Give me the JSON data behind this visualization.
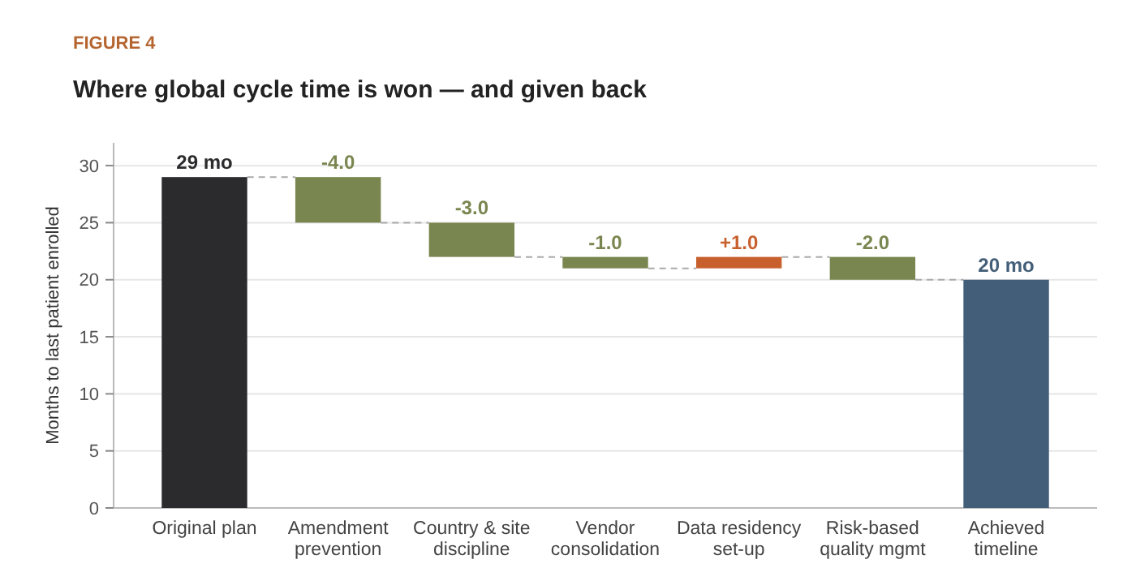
{
  "chart_data": {
    "type": "bar",
    "title": "Where global cycle time is won — and given back",
    "annotations": [
      "FIGURE 4"
    ],
    "ylabel": "Months to last patient enrolled",
    "categories": [
      "Original plan",
      "Amendment prevention",
      "Country & site discipline",
      "Vendor consolidation",
      "Data residency set-up",
      "Risk-based quality mgmt",
      "Achieved timeline"
    ],
    "values": [
      29,
      -4.0,
      -3.0,
      -1.0,
      1.0,
      -2.0,
      20
    ],
    "base": [
      0,
      29,
      25,
      22,
      21,
      22,
      0
    ],
    "colors": [
      "#2b2b2d",
      "#7a8650",
      "#7a8650",
      "#7a8650",
      "#c8602e",
      "#7a8650",
      "#435e78"
    ],
    "value_labels": [
      "29 mo",
      "-4.0",
      "-3.0",
      "-1.0",
      "+1.0",
      "-2.0",
      "20 mo"
    ],
    "ylim": [
      0,
      32
    ],
    "yticks": [
      0,
      5,
      10,
      15,
      20,
      25,
      30
    ],
    "grid": "y"
  }
}
